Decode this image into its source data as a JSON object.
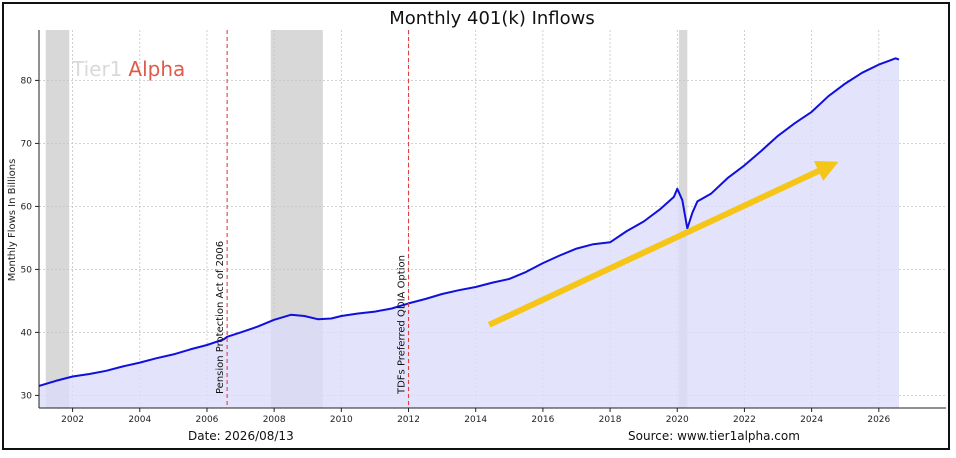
{
  "chart_data": {
    "type": "area",
    "title": "Monthly 401(k) Inflows",
    "xlabel": "",
    "ylabel": "Monthly Flows In Billions",
    "xlim": [
      2001.0,
      2028.0
    ],
    "ylim": [
      28,
      88
    ],
    "x_ticks": [
      "2002",
      "2004",
      "2006",
      "2008",
      "2010",
      "2012",
      "2014",
      "2016",
      "2018",
      "2020",
      "2022",
      "2024",
      "2026"
    ],
    "y_ticks": [
      "30",
      "40",
      "50",
      "60",
      "70",
      "80"
    ],
    "grid": true,
    "line_color": "#1010dd",
    "fill_color": "#dcdcfb",
    "arrow_color": "#f5c518",
    "shaded_periods": [
      {
        "start": 2001.2,
        "end": 2001.9
      },
      {
        "start": 2007.9,
        "end": 2009.45
      },
      {
        "start": 2020.05,
        "end": 2020.3
      }
    ],
    "event_lines": [
      {
        "x": 2006.6,
        "label": "Pension Protection Act of 2006",
        "color": "#e04040"
      },
      {
        "x": 2012.0,
        "label": "TDFs Preferred QDIA Option",
        "color": "#e04040"
      }
    ],
    "arrow": {
      "x1": 2014.4,
      "y1": 41.2,
      "x2": 2024.8,
      "y2": 67.1
    },
    "series": [
      {
        "x": [
          2001.0,
          2001.5,
          2002.0,
          2002.5,
          2003.0,
          2003.5,
          2004.0,
          2004.5,
          2005.0,
          2005.5,
          2006.0,
          2006.5,
          2006.6,
          2007.0,
          2007.5,
          2008.0,
          2008.5,
          2008.9,
          2009.3,
          2009.7,
          2010.0,
          2010.5,
          2011.0,
          2011.5,
          2012.0,
          2012.5,
          2013.0,
          2013.5,
          2014.0,
          2014.5,
          2015.0,
          2015.5,
          2016.0,
          2016.5,
          2017.0,
          2017.5,
          2018.0,
          2018.5,
          2019.0,
          2019.5,
          2019.9,
          2020.0,
          2020.15,
          2020.3,
          2020.45,
          2020.6,
          2021.0,
          2021.5,
          2022.0,
          2022.5,
          2023.0,
          2023.5,
          2024.0,
          2024.5,
          2025.0,
          2025.5,
          2026.0,
          2026.5,
          2026.6
        ],
        "y": [
          31.5,
          32.3,
          33.0,
          33.4,
          33.9,
          34.6,
          35.2,
          35.9,
          36.5,
          37.3,
          38.0,
          38.9,
          39.3,
          40.0,
          40.9,
          42.0,
          42.8,
          42.6,
          42.1,
          42.2,
          42.6,
          43.0,
          43.3,
          43.8,
          44.6,
          45.3,
          46.1,
          46.7,
          47.2,
          47.9,
          48.5,
          49.6,
          51.0,
          52.2,
          53.3,
          54.0,
          54.3,
          56.1,
          57.6,
          59.6,
          61.5,
          62.8,
          61.0,
          56.5,
          59.0,
          60.8,
          62.0,
          64.5,
          66.5,
          68.8,
          71.2,
          73.2,
          75.0,
          77.5,
          79.5,
          81.2,
          82.5,
          83.5,
          83.3
        ]
      }
    ]
  },
  "logo": {
    "part1": "Tier1",
    "part2": "Alpha",
    "part1_color": "#d9d9d9",
    "part2_color": "#e05a4a"
  },
  "footer": {
    "date": "Date: 2026/08/13",
    "source": "Source: www.tier1alpha.com"
  }
}
